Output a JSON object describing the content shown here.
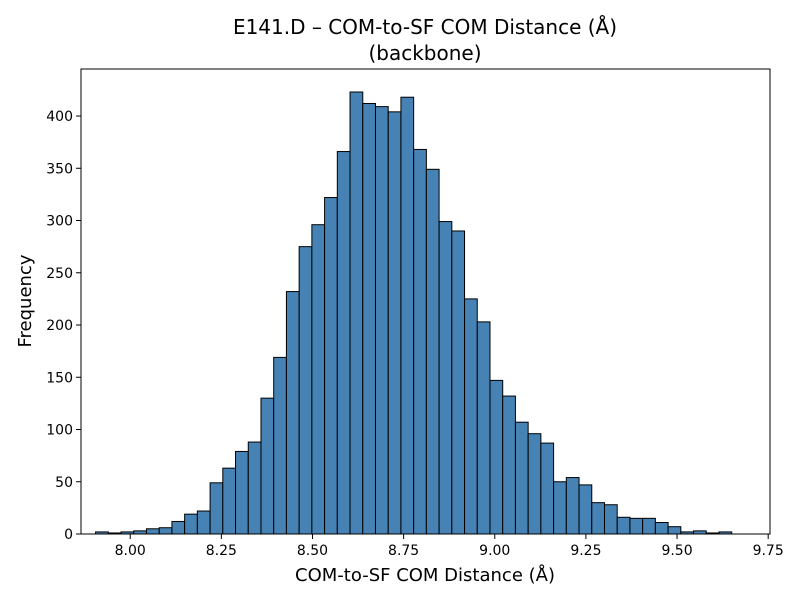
{
  "chart_data": {
    "type": "bar",
    "title": "E141.D – COM-to-SF COM Distance (Å)",
    "subtitle": "(backbone)",
    "xlabel": "COM-to-SF COM Distance (Å)",
    "ylabel": "Frequency",
    "bar_color": "#4682b4",
    "edge_color": "#000000",
    "bin_start": 7.905,
    "bin_width": 0.0349,
    "xlim": [
      7.865,
      9.755
    ],
    "ylim": [
      0,
      445
    ],
    "x_ticks": [
      8.0,
      8.25,
      8.5,
      8.75,
      9.0,
      9.25,
      9.5,
      9.75
    ],
    "x_tick_labels": [
      "8.00",
      "8.25",
      "8.50",
      "8.75",
      "9.00",
      "9.25",
      "9.50",
      "9.75"
    ],
    "y_ticks": [
      0,
      50,
      100,
      150,
      200,
      250,
      300,
      350,
      400
    ],
    "y_tick_labels": [
      "0",
      "50",
      "100",
      "150",
      "200",
      "250",
      "300",
      "350",
      "400"
    ],
    "grid": false,
    "values": [
      2,
      1,
      2,
      3,
      5,
      6,
      12,
      19,
      22,
      49,
      63,
      79,
      88,
      130,
      169,
      232,
      275,
      296,
      322,
      366,
      423,
      412,
      409,
      404,
      418,
      368,
      349,
      299,
      290,
      225,
      203,
      147,
      132,
      107,
      96,
      87,
      50,
      54,
      47,
      30,
      28,
      16,
      15,
      15,
      11,
      7,
      2,
      3,
      1,
      2
    ]
  }
}
